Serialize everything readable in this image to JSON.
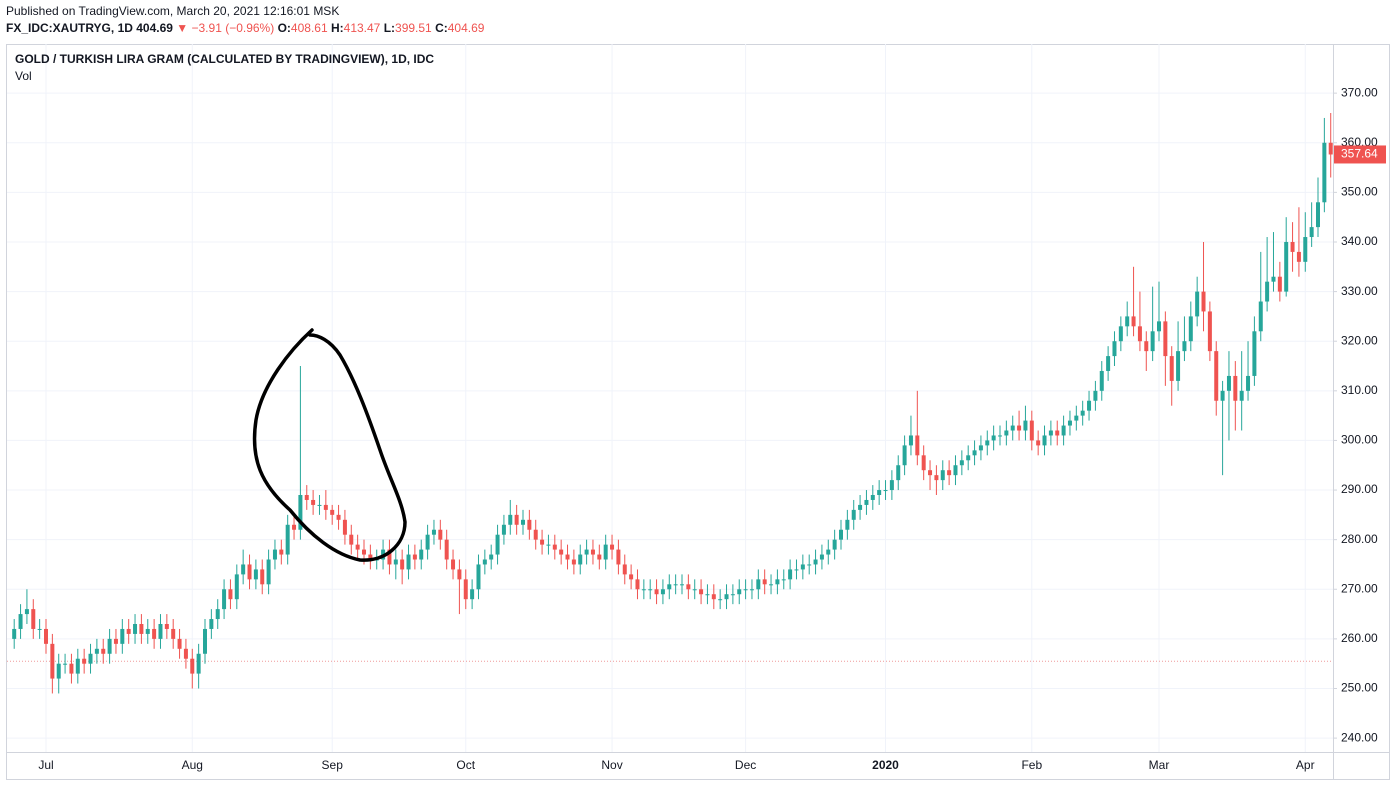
{
  "header": {
    "published": "Published on TradingView.com, March 20, 2021 12:16:01 MSK",
    "symbol": "FX_IDC:XAUTRYG, 1D",
    "price": "404.69",
    "change": "−3.91 (−0.96%)",
    "o_label": "O:",
    "o": "408.61",
    "h_label": "H:",
    "h": "413.47",
    "l_label": "L:",
    "l": "399.51",
    "c_label": "C:",
    "c": "404.69"
  },
  "chart_data": {
    "type": "candlestick",
    "title": "GOLD / TURKISH LIRA GRAM (CALCULATED BY TRADINGVIEW), 1D, IDC",
    "subtitle": "Vol",
    "up_color": "#26a69a",
    "down_color": "#ef5350",
    "grid": true,
    "ylim": [
      237.2,
      379.1
    ],
    "yticks": [
      {
        "value": 240,
        "label": "240.00"
      },
      {
        "value": 250,
        "label": "250.00"
      },
      {
        "value": 260,
        "label": "260.00"
      },
      {
        "value": 270,
        "label": "270.00"
      },
      {
        "value": 280,
        "label": "280.00"
      },
      {
        "value": 290,
        "label": "290.00"
      },
      {
        "value": 300,
        "label": "300.00"
      },
      {
        "value": 310,
        "label": "310.00"
      },
      {
        "value": 320,
        "label": "320.00"
      },
      {
        "value": 330,
        "label": "330.00"
      },
      {
        "value": 340,
        "label": "340.00"
      },
      {
        "value": 350,
        "label": "350.00"
      },
      {
        "value": 360,
        "label": "360.00"
      },
      {
        "value": 370,
        "label": "370.00"
      }
    ],
    "hline": 255.5,
    "categories": [
      null,
      null,
      null,
      null,
      null,
      "Jul",
      null,
      null,
      null,
      null,
      null,
      null,
      null,
      null,
      null,
      null,
      null,
      null,
      null,
      null,
      null,
      null,
      null,
      null,
      null,
      null,
      null,
      null,
      "Aug",
      null,
      null,
      null,
      null,
      null,
      null,
      null,
      null,
      null,
      null,
      null,
      null,
      null,
      null,
      null,
      null,
      null,
      null,
      null,
      null,
      null,
      "Sep",
      null,
      null,
      null,
      null,
      null,
      null,
      null,
      null,
      null,
      null,
      null,
      null,
      null,
      null,
      null,
      null,
      null,
      null,
      null,
      null,
      "Oct",
      null,
      null,
      null,
      null,
      null,
      null,
      null,
      null,
      null,
      null,
      null,
      null,
      null,
      null,
      null,
      null,
      null,
      null,
      null,
      null,
      null,
      null,
      "Nov",
      null,
      null,
      null,
      null,
      null,
      null,
      null,
      null,
      null,
      null,
      null,
      null,
      null,
      null,
      null,
      null,
      null,
      null,
      null,
      null,
      "Dec",
      null,
      null,
      null,
      null,
      null,
      null,
      null,
      null,
      null,
      null,
      null,
      null,
      null,
      null,
      null,
      null,
      null,
      null,
      null,
      null,
      null,
      "2020",
      null,
      null,
      null,
      null,
      null,
      null,
      null,
      null,
      null,
      null,
      null,
      null,
      null,
      null,
      null,
      null,
      null,
      null,
      null,
      null,
      null,
      null,
      "Feb",
      null,
      null,
      null,
      null,
      null,
      null,
      null,
      null,
      null,
      null,
      null,
      null,
      null,
      null,
      null,
      null,
      null,
      null,
      null,
      "Mar",
      null,
      null,
      null,
      null,
      null,
      null,
      null,
      null,
      null,
      null,
      null,
      null,
      null,
      null,
      null,
      null,
      null,
      null,
      null,
      null,
      null,
      null,
      "Apr",
      null,
      null,
      null,
      null
    ],
    "open": [
      260,
      262,
      265,
      266,
      262,
      262,
      259,
      252,
      255,
      255,
      253,
      256,
      255,
      257,
      258,
      257,
      260,
      259,
      262,
      261,
      263,
      261,
      262,
      260,
      263,
      262,
      260,
      258,
      256,
      253,
      257,
      262,
      264,
      266,
      270,
      268,
      273,
      275,
      272,
      274,
      271,
      276,
      278,
      277,
      283,
      282,
      289,
      288,
      287,
      287,
      286,
      285,
      284,
      281,
      279,
      278,
      277,
      276,
      276,
      278,
      275,
      276,
      274,
      277,
      276,
      278,
      281,
      282,
      280,
      276,
      274,
      272,
      268,
      270,
      275,
      276,
      277,
      281,
      283,
      285,
      283,
      284,
      282,
      280,
      279,
      279,
      278,
      277,
      276,
      275,
      277,
      278,
      277,
      276,
      279,
      278,
      275,
      273,
      272,
      270,
      270,
      270,
      269,
      270,
      271,
      271,
      271,
      270,
      270,
      269,
      269,
      268,
      268,
      269,
      269,
      270,
      270,
      270,
      272,
      271,
      271,
      272,
      272,
      274,
      274,
      275,
      275,
      276,
      277,
      278,
      280,
      282,
      284,
      286,
      287,
      288,
      289,
      290,
      290,
      292,
      295,
      299,
      301,
      297,
      294,
      293,
      292,
      294,
      293,
      295,
      296,
      297,
      298,
      299,
      300,
      301,
      301,
      302,
      303,
      302,
      304,
      300,
      299,
      301,
      302,
      301,
      303,
      304,
      305,
      306,
      308,
      310,
      314,
      317,
      320,
      323,
      325,
      323,
      320,
      318,
      322,
      324,
      317,
      312,
      318,
      320,
      325,
      330,
      326,
      318,
      308,
      310,
      313,
      308,
      310,
      313,
      322,
      328,
      332,
      333,
      330,
      340,
      338,
      336,
      341,
      343,
      348,
      360
    ],
    "high": [
      264,
      267,
      270,
      268,
      264,
      264,
      261,
      257,
      257,
      257,
      258,
      258,
      259,
      260,
      260,
      262,
      262,
      264,
      264,
      265,
      265,
      264,
      264,
      265,
      265,
      264,
      262,
      260,
      258,
      259,
      264,
      266,
      268,
      272,
      272,
      275,
      278,
      277,
      276,
      276,
      278,
      280,
      280,
      285,
      285,
      315,
      291,
      290,
      289,
      290,
      287,
      287,
      286,
      283,
      281,
      280,
      279,
      278,
      280,
      280,
      278,
      278,
      279,
      279,
      280,
      283,
      284,
      284,
      282,
      278,
      276,
      274,
      272,
      277,
      278,
      279,
      283,
      285,
      288,
      287,
      286,
      286,
      284,
      282,
      281,
      281,
      280,
      279,
      278,
      279,
      280,
      280,
      279,
      281,
      281,
      280,
      277,
      275,
      274,
      272,
      272,
      272,
      272,
      273,
      273,
      273,
      273,
      272,
      272,
      271,
      271,
      270,
      271,
      271,
      272,
      272,
      272,
      274,
      274,
      273,
      274,
      274,
      276,
      276,
      277,
      277,
      278,
      279,
      280,
      282,
      284,
      286,
      288,
      289,
      290,
      291,
      292,
      292,
      294,
      297,
      301,
      305,
      310,
      299,
      296,
      295,
      296,
      296,
      297,
      298,
      299,
      300,
      301,
      302,
      303,
      303,
      304,
      305,
      306,
      307,
      306,
      302,
      303,
      304,
      304,
      305,
      306,
      307,
      308,
      310,
      312,
      316,
      319,
      322,
      325,
      328,
      335,
      330,
      322,
      331,
      332,
      326,
      319,
      324,
      325,
      328,
      333,
      340,
      328,
      320,
      312,
      318,
      316,
      318,
      320,
      325,
      338,
      341,
      342,
      336,
      345,
      344,
      347,
      346,
      348,
      353,
      365,
      366
    ],
    "low": [
      258,
      260,
      263,
      260,
      260,
      257,
      249,
      249,
      253,
      251,
      251,
      253,
      253,
      255,
      255,
      255,
      257,
      257,
      259,
      259,
      259,
      259,
      258,
      258,
      260,
      258,
      256,
      254,
      250,
      250,
      255,
      260,
      262,
      264,
      266,
      266,
      271,
      270,
      270,
      269,
      269,
      274,
      275,
      275,
      280,
      280,
      286,
      285,
      285,
      284,
      283,
      282,
      279,
      277,
      276,
      275,
      274,
      274,
      274,
      273,
      272,
      271,
      272,
      274,
      274,
      276,
      279,
      278,
      274,
      272,
      265,
      266,
      266,
      268,
      273,
      274,
      275,
      279,
      281,
      281,
      281,
      280,
      278,
      277,
      277,
      276,
      275,
      274,
      273,
      273,
      275,
      275,
      274,
      274,
      276,
      273,
      271,
      270,
      268,
      268,
      268,
      267,
      267,
      268,
      269,
      269,
      268,
      268,
      267,
      267,
      266,
      266,
      266,
      267,
      267,
      268,
      268,
      268,
      269,
      269,
      269,
      270,
      270,
      272,
      272,
      273,
      273,
      274,
      275,
      276,
      278,
      280,
      282,
      284,
      285,
      286,
      287,
      288,
      288,
      290,
      293,
      297,
      295,
      292,
      290,
      289,
      290,
      291,
      291,
      293,
      294,
      295,
      296,
      297,
      298,
      299,
      299,
      300,
      300,
      300,
      298,
      297,
      297,
      299,
      299,
      299,
      301,
      302,
      303,
      304,
      306,
      308,
      312,
      315,
      318,
      321,
      321,
      318,
      314,
      316,
      320,
      311,
      307,
      310,
      316,
      318,
      323,
      322,
      316,
      305,
      293,
      300,
      302,
      302,
      308,
      311,
      320,
      326,
      330,
      328,
      329,
      334,
      333,
      334,
      339,
      341,
      346,
      353
    ],
    "close": [
      262,
      265,
      266,
      262,
      262,
      259,
      252,
      255,
      255,
      253,
      256,
      255,
      257,
      258,
      257,
      260,
      259,
      262,
      261,
      263,
      261,
      262,
      260,
      263,
      262,
      260,
      258,
      256,
      253,
      257,
      262,
      264,
      266,
      270,
      268,
      273,
      275,
      272,
      274,
      271,
      276,
      278,
      277,
      283,
      282,
      289,
      288,
      287,
      287,
      286,
      285,
      284,
      281,
      279,
      278,
      277,
      276,
      276,
      278,
      275,
      276,
      274,
      277,
      276,
      278,
      281,
      282,
      280,
      276,
      274,
      272,
      268,
      270,
      275,
      276,
      277,
      281,
      283,
      285,
      283,
      284,
      282,
      280,
      279,
      279,
      278,
      277,
      276,
      275,
      277,
      278,
      277,
      276,
      279,
      278,
      275,
      273,
      272,
      270,
      270,
      270,
      269,
      270,
      271,
      271,
      271,
      270,
      270,
      269,
      269,
      268,
      268,
      269,
      269,
      270,
      270,
      270,
      272,
      271,
      271,
      272,
      272,
      274,
      274,
      275,
      275,
      276,
      277,
      278,
      280,
      282,
      284,
      286,
      287,
      288,
      289,
      290,
      290,
      292,
      295,
      299,
      301,
      297,
      294,
      293,
      292,
      294,
      293,
      295,
      296,
      297,
      298,
      299,
      300,
      301,
      301,
      302,
      303,
      302,
      304,
      300,
      299,
      301,
      302,
      301,
      303,
      304,
      305,
      306,
      308,
      310,
      314,
      317,
      320,
      323,
      325,
      323,
      320,
      318,
      322,
      324,
      317,
      312,
      318,
      320,
      325,
      330,
      326,
      318,
      308,
      310,
      313,
      308,
      310,
      313,
      322,
      328,
      332,
      333,
      330,
      340,
      338,
      336,
      341,
      343,
      348,
      360,
      357.64
    ]
  }
}
